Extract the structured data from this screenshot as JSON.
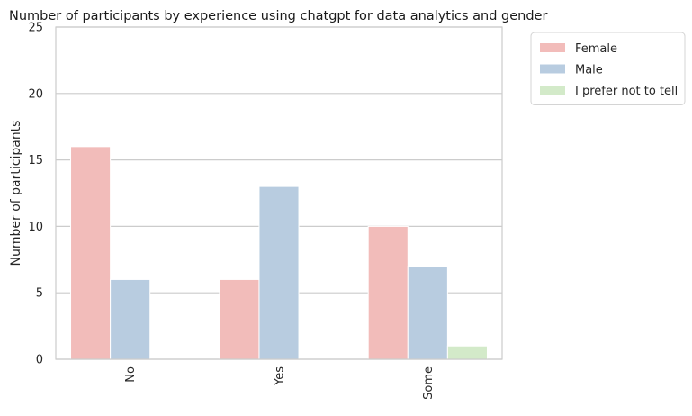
{
  "chart_data": {
    "type": "bar",
    "title": "Number of participants by experience using chatgpt for data analytics and gender",
    "xlabel": "",
    "ylabel": "Number of participants",
    "categories": [
      "No",
      "Yes",
      "Some"
    ],
    "series": [
      {
        "name": "Female",
        "values": [
          16,
          6,
          10
        ],
        "color": "#f2bcba"
      },
      {
        "name": "Male",
        "values": [
          6,
          13,
          7
        ],
        "color": "#b8cce0"
      },
      {
        "name": "I prefer not to tell",
        "values": [
          0,
          0,
          1
        ],
        "color": "#d3eac9"
      }
    ],
    "ylim": [
      0,
      25
    ],
    "yticks": [
      0,
      5,
      10,
      15,
      20,
      25
    ],
    "grid": "horizontal",
    "legend_position": "outside-top-right",
    "x_tick_rotation": "vertical"
  }
}
